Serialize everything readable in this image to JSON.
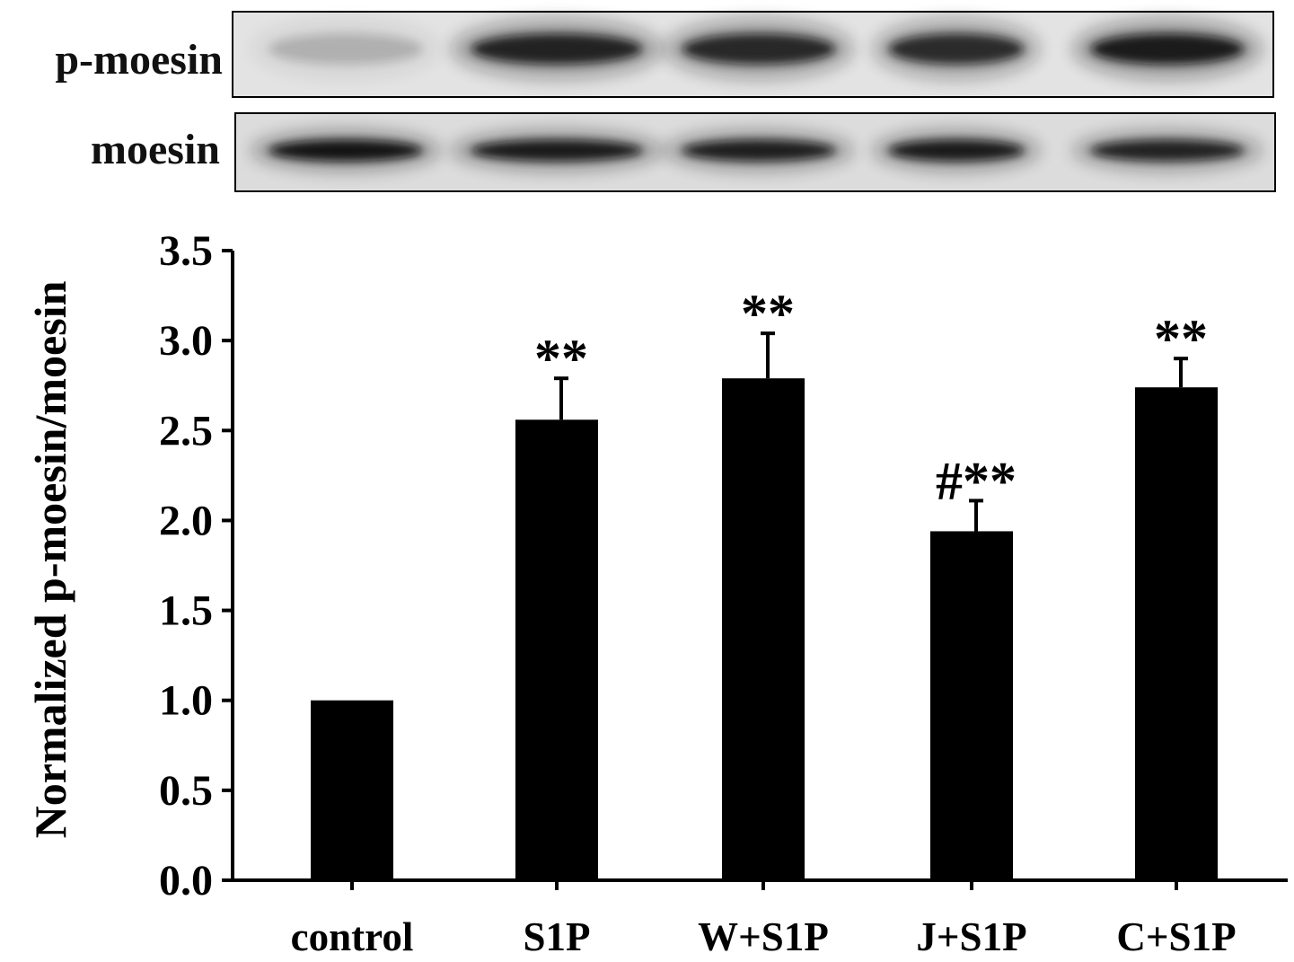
{
  "blot": {
    "rows": [
      {
        "label": "p-moesin",
        "intensity": [
          0.18,
          0.85,
          0.82,
          0.8,
          0.9
        ]
      },
      {
        "label": "moesin",
        "intensity": [
          0.95,
          0.9,
          0.88,
          0.9,
          0.85
        ]
      }
    ],
    "background": "#d9d9d9",
    "band_color": "#111111"
  },
  "chart_data": {
    "type": "bar",
    "categories": [
      "control",
      "S1P",
      "W+S1P",
      "J+S1P",
      "C+S1P"
    ],
    "values": [
      1.0,
      2.56,
      2.79,
      1.94,
      2.74
    ],
    "errors": [
      0,
      0.23,
      0.25,
      0.17,
      0.16
    ],
    "annotations": [
      "",
      "**",
      "**",
      "#**",
      "**"
    ],
    "title": "",
    "xlabel": "",
    "ylabel": "Normalized p-moesin/moesin",
    "ylim": [
      0,
      3.5
    ],
    "yticks": [
      0,
      0.5,
      1.0,
      1.5,
      2.0,
      2.5,
      3.0,
      3.5
    ],
    "ytick_labels": [
      "0.0",
      "0.5",
      "1.0",
      "1.5",
      "2.0",
      "2.5",
      "3.0",
      "3.5"
    ],
    "bar_color": "#000000",
    "grid": false,
    "legend": "none"
  }
}
